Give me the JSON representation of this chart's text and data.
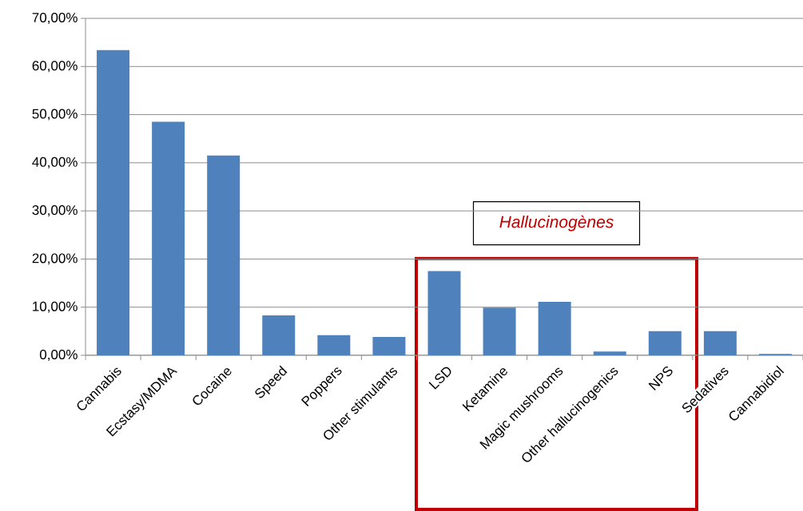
{
  "chart_data": {
    "type": "bar",
    "categories": [
      "Cannabis",
      "Ecstasy/MDMA",
      "Cocaine",
      "Speed",
      "Poppers",
      "Other stimulants",
      "LSD",
      "Ketamine",
      "Magic mushrooms",
      "Other hallucinogenics",
      "NPS",
      "Sedatives",
      "Cannabidiol"
    ],
    "values": [
      63.4,
      48.5,
      41.5,
      8.3,
      4.2,
      3.8,
      17.5,
      9.9,
      11.1,
      0.8,
      5.0,
      5.0,
      0.3
    ],
    "color": "#4f81bd",
    "ylim": [
      0,
      70
    ],
    "yticks": [
      {
        "value": 0,
        "label": "0,00%"
      },
      {
        "value": 10,
        "label": "10,00%"
      },
      {
        "value": 20,
        "label": "20,00%"
      },
      {
        "value": 30,
        "label": "30,00%"
      },
      {
        "value": 40,
        "label": "40,00%"
      },
      {
        "value": 50,
        "label": "50,00%"
      },
      {
        "value": 60,
        "label": "60,00%"
      },
      {
        "value": 70,
        "label": "70,00%"
      }
    ],
    "grid": "y",
    "annotations": [
      "Hallucinogènes"
    ]
  }
}
